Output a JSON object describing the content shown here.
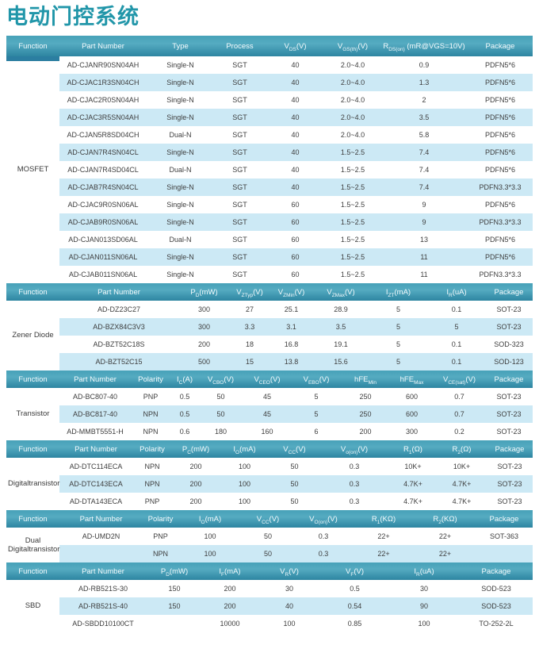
{
  "title": "电动门控系统",
  "tables": [
    {
      "function": "MOSFET",
      "headers": [
        "Function",
        "Part Number",
        "Type",
        "Process",
        "V~DS~(V)",
        "V~GS(th)~(V)",
        "R~DS(on)~ (mR@VGS=10V)",
        "Package"
      ],
      "rows": [
        [
          "AD-CJANR90SN04AH",
          "Single-N",
          "SGT",
          "40",
          "2.0~4.0",
          "0.9",
          "PDFN5*6"
        ],
        [
          "AD-CJAC1R3SN04CH",
          "Single-N",
          "SGT",
          "40",
          "2.0~4.0",
          "1.3",
          "PDFN5*6"
        ],
        [
          "AD-CJAC2R0SN04AH",
          "Single-N",
          "SGT",
          "40",
          "2.0~4.0",
          "2",
          "PDFN5*6"
        ],
        [
          "AD-CJAC3R5SN04AH",
          "Single-N",
          "SGT",
          "40",
          "2.0~4.0",
          "3.5",
          "PDFN5*6"
        ],
        [
          "AD-CJAN5R8SD04CH",
          "Dual-N",
          "SGT",
          "40",
          "2.0~4.0",
          "5.8",
          "PDFN5*6"
        ],
        [
          "AD-CJAN7R4SN04CL",
          "Single-N",
          "SGT",
          "40",
          "1.5~2.5",
          "7.4",
          "PDFN5*6"
        ],
        [
          "AD-CJAN7R4SD04CL",
          "Dual-N",
          "SGT",
          "40",
          "1.5~2.5",
          "7.4",
          "PDFN5*6"
        ],
        [
          "AD-CJAB7R4SN04CL",
          "Single-N",
          "SGT",
          "40",
          "1.5~2.5",
          "7.4",
          "PDFN3.3*3.3"
        ],
        [
          "AD-CJAC9R0SN06AL",
          "Single-N",
          "SGT",
          "60",
          "1.5~2.5",
          "9",
          "PDFN5*6"
        ],
        [
          "AD-CJAB9R0SN06AL",
          "Single-N",
          "SGT",
          "60",
          "1.5~2.5",
          "9",
          "PDFN3.3*3.3"
        ],
        [
          "AD-CJAN013SD06AL",
          "Dual-N",
          "SGT",
          "60",
          "1.5~2.5",
          "13",
          "PDFN5*6"
        ],
        [
          "AD-CJAN011SN06AL",
          "Single-N",
          "SGT",
          "60",
          "1.5~2.5",
          "11",
          "PDFN5*6"
        ],
        [
          "AD-CJAB011SN06AL",
          "Single-N",
          "SGT",
          "60",
          "1.5~2.5",
          "11",
          "PDFN3.3*3.3"
        ]
      ]
    },
    {
      "function": "Zener Diode",
      "headers": [
        "Function",
        "Part Number",
        "P~D~(mW)",
        "V~ZTyp~(V)",
        "V~ZMin~(V)",
        "V~ZMax~(V)",
        "I~ZT~(mA)",
        "I~R~(uA)",
        "Package"
      ],
      "rows": [
        [
          "AD-DZ23C27",
          "300",
          "27",
          "25.1",
          "28.9",
          "5",
          "0.1",
          "SOT-23"
        ],
        [
          "AD-BZX84C3V3",
          "300",
          "3.3",
          "3.1",
          "3.5",
          "5",
          "5",
          "SOT-23"
        ],
        [
          "AD-BZT52C18S",
          "200",
          "18",
          "16.8",
          "19.1",
          "5",
          "0.1",
          "SOD-323"
        ],
        [
          "AD-BZT52C15",
          "500",
          "15",
          "13.8",
          "15.6",
          "5",
          "0.1",
          "SOD-123"
        ]
      ]
    },
    {
      "function": "Transistor",
      "headers": [
        "Function",
        "Part Number",
        "Polarity",
        "I~C~(A)",
        "V~CBO~(V)",
        "V~CEO~(V)",
        "V~EBO~(V)",
        "hFE~Min~",
        "hFE~Max~",
        "V~CE(sat)~(V)",
        "Package"
      ],
      "rows": [
        [
          "AD-BC807-40",
          "PNP",
          "0.5",
          "50",
          "45",
          "5",
          "250",
          "600",
          "0.7",
          "SOT-23"
        ],
        [
          "AD-BC817-40",
          "NPN",
          "0.5",
          "50",
          "45",
          "5",
          "250",
          "600",
          "0.7",
          "SOT-23"
        ],
        [
          "AD-MMBT5551-H",
          "NPN",
          "0.6",
          "180",
          "160",
          "6",
          "200",
          "300",
          "0.2",
          "SOT-23"
        ]
      ]
    },
    {
      "function": "Digitaltransistor",
      "headers": [
        "Function",
        "Part Number",
        "Polarity",
        "P~C~(mW)",
        "I~O~(mA)",
        "V~CC~(V)",
        "V~o(on)~(V)",
        "R~1~(Ω)",
        "R~2~(Ω)",
        "Package"
      ],
      "rows": [
        [
          "AD-DTC114ECA",
          "NPN",
          "200",
          "100",
          "50",
          "0.3",
          "10K+",
          "10K+",
          "SOT-23"
        ],
        [
          "AD-DTC143ECA",
          "NPN",
          "200",
          "100",
          "50",
          "0.3",
          "4.7K+",
          "4.7K+",
          "SOT-23"
        ],
        [
          "AD-DTA143ECA",
          "PNP",
          "200",
          "100",
          "50",
          "0.3",
          "4.7K+",
          "4.7K+",
          "SOT-23"
        ]
      ]
    },
    {
      "function": "Dual\nDigitaltransistor",
      "headers": [
        "Function",
        "Part Number",
        "Polarity",
        "I~O~(mA)",
        "V~CC~(V)",
        "V~O(on)~(V)",
        "R~1~(KΩ)",
        "R~2~(KΩ)",
        "Package"
      ],
      "rows": [
        [
          "AD-UMD2N",
          "PNP",
          "100",
          "50",
          "0.3",
          "22+",
          "22+",
          "SOT-363"
        ],
        [
          "",
          "NPN",
          "100",
          "50",
          "0.3",
          "22+",
          "22+",
          ""
        ]
      ]
    },
    {
      "function": "SBD",
      "headers": [
        "Function",
        "Part Number",
        "P~D~(mW)",
        "I~F~(mA)",
        "V~R~(V)",
        "V~F~(V)",
        "I~R~(uA)",
        "Package"
      ],
      "rows": [
        [
          "AD-RB521S-30",
          "150",
          "200",
          "30",
          "0.5",
          "30",
          "SOD-523"
        ],
        [
          "AD-RB521S-40",
          "150",
          "200",
          "40",
          "0.54",
          "90",
          "SOD-523"
        ],
        [
          "AD-SBDD10100CT",
          "",
          "10000",
          "100",
          "0.85",
          "100",
          "TO-252-2L"
        ]
      ]
    }
  ]
}
